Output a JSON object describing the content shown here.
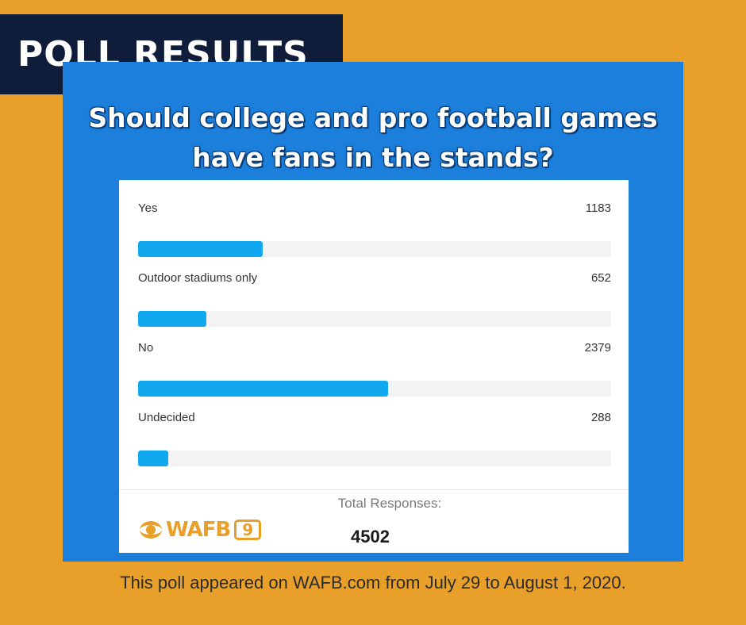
{
  "header": {
    "badge": "POLL RESULTS"
  },
  "question": {
    "line1": "Should college and pro football games",
    "line2": "have fans in the stands?"
  },
  "chart_data": {
    "type": "bar",
    "orientation": "horizontal",
    "categories": [
      "Yes",
      "Outdoor stadiums only",
      "No",
      "Undecided"
    ],
    "values": [
      1183,
      652,
      2379,
      288
    ],
    "total": 4502,
    "colors": {
      "bar": "#11a8f0",
      "track": "#f3f3f3"
    }
  },
  "totals": {
    "label": "Total Responses:",
    "value": "4502"
  },
  "logo": {
    "text": "WAFB",
    "channel": "9",
    "icon": "cbs-eye-icon"
  },
  "footer": {
    "note": "This poll appeared on WAFB.com from July 29 to August 1, 2020."
  },
  "colors": {
    "background": "#e8a02a",
    "panel": "#1b7fdb",
    "badge": "#0f1d3a"
  }
}
